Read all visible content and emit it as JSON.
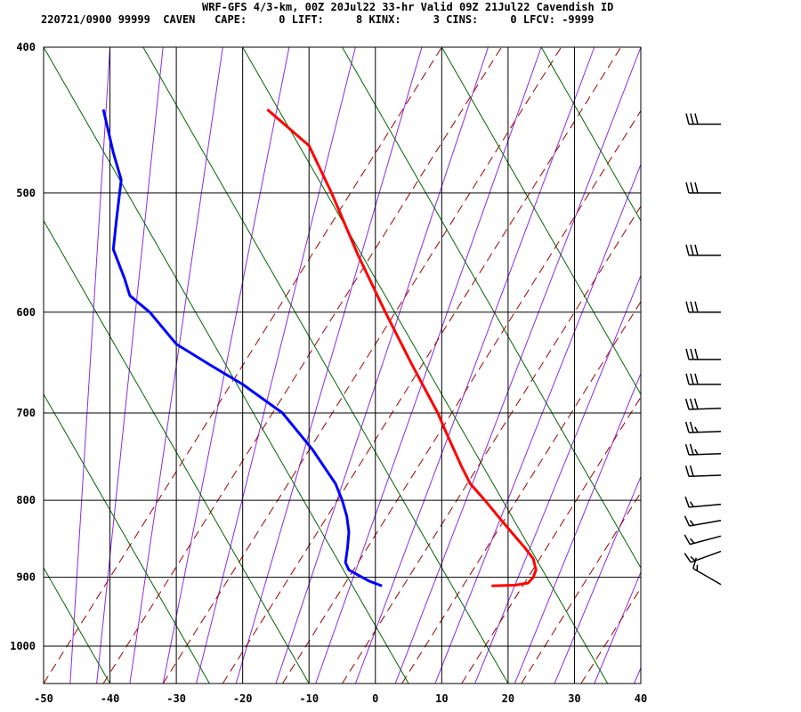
{
  "header": {
    "title_line": "WRF-GFS 4/3-km, 00Z 20Jul22 33-hr Valid 09Z 21Jul22 Cavendish ID",
    "info_line": "220721/0900 99999  CAVEN   CAPE:     0 LIFT:     8 KINX:     3 CINS:     0 LFCV: -9999"
  },
  "colors": {
    "temperature": "#ff0000",
    "dewpoint": "#0000ff",
    "isotherm_grid": "#000000",
    "dry_adiabat": "#006400",
    "moist_adiabat": "#a00000",
    "mixing_ratio": "#8a2be2"
  },
  "chart_data": {
    "type": "skew-t",
    "xlabel": "",
    "ylabel": "",
    "x_ticks": [
      "-50",
      "-40",
      "-30",
      "-20",
      "-10",
      "0",
      "10",
      "20",
      "30",
      "40"
    ],
    "y_ticks": [
      "400",
      "500",
      "600",
      "700",
      "800",
      "900",
      "1000"
    ],
    "xlim": [
      -50,
      40
    ],
    "ylim_hpa": [
      1050,
      400
    ],
    "temperature_profile_skewed": [
      {
        "p": 912,
        "x": 17.5
      },
      {
        "p": 911,
        "x": 21
      },
      {
        "p": 908,
        "x": 23
      },
      {
        "p": 900,
        "x": 23.8
      },
      {
        "p": 890,
        "x": 24.2
      },
      {
        "p": 875,
        "x": 23.8
      },
      {
        "p": 860,
        "x": 22.5
      },
      {
        "p": 840,
        "x": 20.5
      },
      {
        "p": 820,
        "x": 18.5
      },
      {
        "p": 800,
        "x": 16.5
      },
      {
        "p": 780,
        "x": 14.3
      },
      {
        "p": 760,
        "x": 13
      },
      {
        "p": 740,
        "x": 11.8
      },
      {
        "p": 720,
        "x": 10.6
      },
      {
        "p": 700,
        "x": 9.4
      },
      {
        "p": 650,
        "x": 5.5
      },
      {
        "p": 600,
        "x": 1.5
      },
      {
        "p": 550,
        "x": -2.6
      },
      {
        "p": 500,
        "x": -6.6
      },
      {
        "p": 465,
        "x": -10
      },
      {
        "p": 440,
        "x": -16.3
      }
    ],
    "dewpoint_profile_skewed": [
      {
        "p": 912,
        "x": 1
      },
      {
        "p": 905,
        "x": -1
      },
      {
        "p": 890,
        "x": -4
      },
      {
        "p": 880,
        "x": -4.5
      },
      {
        "p": 860,
        "x": -4.2
      },
      {
        "p": 840,
        "x": -4
      },
      {
        "p": 820,
        "x": -4.3
      },
      {
        "p": 800,
        "x": -5
      },
      {
        "p": 780,
        "x": -6
      },
      {
        "p": 740,
        "x": -9.5
      },
      {
        "p": 700,
        "x": -14
      },
      {
        "p": 670,
        "x": -20
      },
      {
        "p": 650,
        "x": -25
      },
      {
        "p": 630,
        "x": -30
      },
      {
        "p": 600,
        "x": -34
      },
      {
        "p": 585,
        "x": -37
      },
      {
        "p": 570,
        "x": -37.8
      },
      {
        "p": 545,
        "x": -39.5
      },
      {
        "p": 520,
        "x": -39
      },
      {
        "p": 490,
        "x": -38.3
      },
      {
        "p": 470,
        "x": -39.5
      },
      {
        "p": 440,
        "x": -41
      }
    ],
    "wind_barbs": [
      {
        "p": 910,
        "dir_deg": 300,
        "speed_kt": 15
      },
      {
        "p": 865,
        "dir_deg": 250,
        "speed_kt": 15
      },
      {
        "p": 845,
        "dir_deg": 255,
        "speed_kt": 15
      },
      {
        "p": 825,
        "dir_deg": 260,
        "speed_kt": 15
      },
      {
        "p": 805,
        "dir_deg": 265,
        "speed_kt": 15
      },
      {
        "p": 770,
        "dir_deg": 268,
        "speed_kt": 20
      },
      {
        "p": 745,
        "dir_deg": 268,
        "speed_kt": 25
      },
      {
        "p": 720,
        "dir_deg": 268,
        "speed_kt": 25
      },
      {
        "p": 695,
        "dir_deg": 268,
        "speed_kt": 30
      },
      {
        "p": 670,
        "dir_deg": 270,
        "speed_kt": 30
      },
      {
        "p": 645,
        "dir_deg": 270,
        "speed_kt": 30
      },
      {
        "p": 600,
        "dir_deg": 270,
        "speed_kt": 30
      },
      {
        "p": 550,
        "dir_deg": 270,
        "speed_kt": 30
      },
      {
        "p": 500,
        "dir_deg": 270,
        "speed_kt": 30
      },
      {
        "p": 450,
        "dir_deg": 270,
        "speed_kt": 30
      }
    ]
  }
}
